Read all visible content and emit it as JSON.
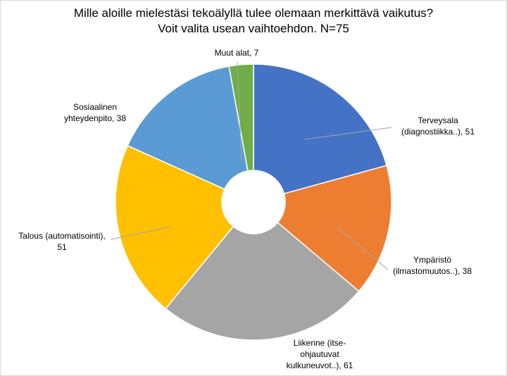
{
  "chart_data": {
    "type": "pie",
    "donut": true,
    "title": "Mille aloille mielestäsi tekoälyllä tulee olemaan merkittävä vaikutus?",
    "subtitle": "Voit valita usean vaihtoehdon. N=75",
    "slices": [
      {
        "label": "Terveysala (diagnostiikka..)",
        "value": 51,
        "color": "#4472C4",
        "label_lines": [
          "Terveysala",
          "(diagnostiikka..), 51"
        ]
      },
      {
        "label": "Ympäristö (ilmastomuutos..)",
        "value": 38,
        "color": "#ED7D31",
        "label_lines": [
          "Ympäristö",
          "(ilmastomuutos..), 38"
        ]
      },
      {
        "label": "Liikenne (itse-ohjautuvat kulkuneuvot..)",
        "value": 61,
        "color": "#A5A5A5",
        "label_lines": [
          "Liikenne (itse-",
          "ohjautuvat",
          "kulkuneuvot..), 61"
        ]
      },
      {
        "label": "Talous (automatisointi)",
        "value": 51,
        "color": "#FFC000",
        "label_lines": [
          "Talous (automatisointi),",
          "51"
        ]
      },
      {
        "label": "Sosiaalinen yhteydenpito",
        "value": 38,
        "color": "#5B9BD5",
        "label_lines": [
          "Sosiaalinen",
          "yhteydenpito, 38"
        ]
      },
      {
        "label": "Muut alat",
        "value": 7,
        "color": "#70AD47",
        "label_lines": [
          "Muut alat, 7"
        ]
      }
    ]
  }
}
